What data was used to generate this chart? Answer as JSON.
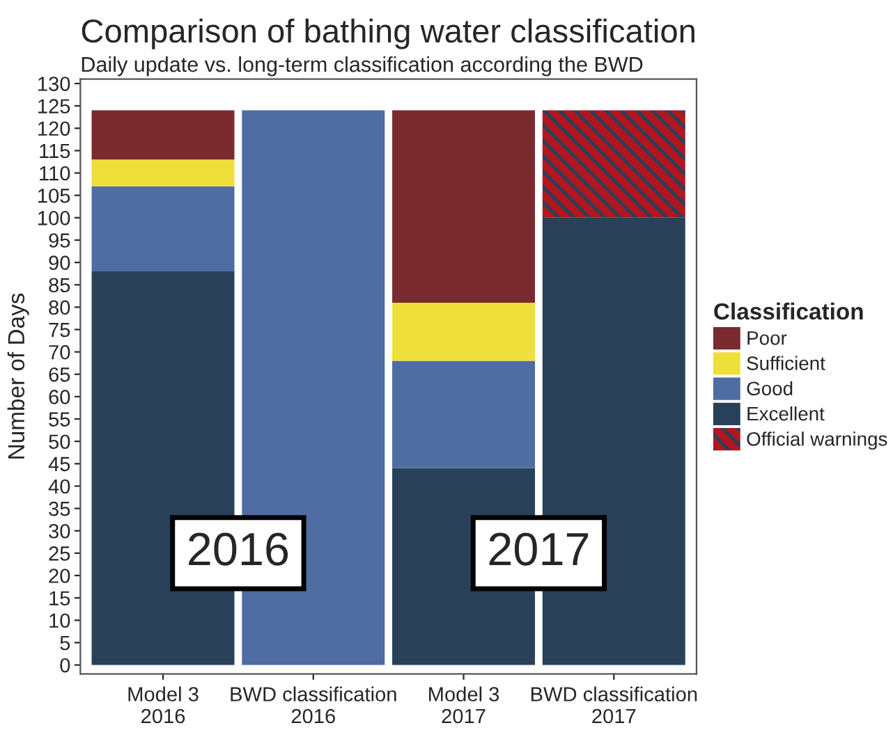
{
  "chart_data": {
    "type": "bar",
    "stacked": true,
    "title": "Comparison of bathing water classification",
    "subtitle": "Daily update vs. long-term classification according the BWD",
    "ylabel": "Number of Days",
    "legend_title": "Classification",
    "legend": "right",
    "grid": false,
    "categories": [
      "Model 3\n2016",
      "BWD classification\n2016",
      "Model 3\n2017",
      "BWD classification\n2017"
    ],
    "series": [
      {
        "name": "Excellent",
        "color": "#284159",
        "values": [
          88,
          null,
          44,
          100
        ]
      },
      {
        "name": "Good",
        "color": "#4f6ca3",
        "values": [
          19,
          124,
          24,
          null
        ]
      },
      {
        "name": "Sufficient",
        "color": "#eedf3b",
        "values": [
          6,
          null,
          13,
          null
        ]
      },
      {
        "name": "Poor",
        "color": "#792b2f",
        "values": [
          11,
          null,
          43,
          null
        ]
      },
      {
        "name": "Official warnings",
        "color": "#b3161c",
        "values": [
          null,
          null,
          null,
          24
        ]
      }
    ],
    "ylim": [
      -2,
      131
    ],
    "yticks": [
      0,
      5,
      10,
      15,
      20,
      25,
      30,
      35,
      40,
      45,
      50,
      55,
      60,
      65,
      70,
      75,
      80,
      85,
      90,
      95,
      100,
      105,
      110,
      115,
      120,
      125,
      130
    ],
    "annotations": [
      "2016",
      "2017"
    ]
  }
}
